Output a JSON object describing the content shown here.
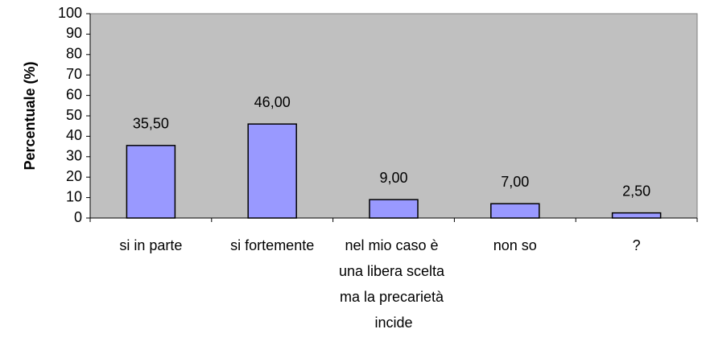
{
  "chart_data": {
    "type": "bar",
    "y_label": "Percentuale (%)",
    "categories": [
      "si in parte",
      "si fortemente",
      "nel mio caso è una libera scelta ma la precarietà incide",
      "non so",
      "?"
    ],
    "values": [
      35.5,
      46,
      9,
      7,
      2.5
    ],
    "value_labels": [
      "35,50",
      "46,00",
      "9,00",
      "7,00",
      "2,50"
    ],
    "color": "#9999ff",
    "ylim": [
      0,
      100
    ],
    "yticks": [
      0,
      10,
      20,
      30,
      40,
      50,
      60,
      70,
      80,
      90,
      100
    ],
    "grid": false
  }
}
